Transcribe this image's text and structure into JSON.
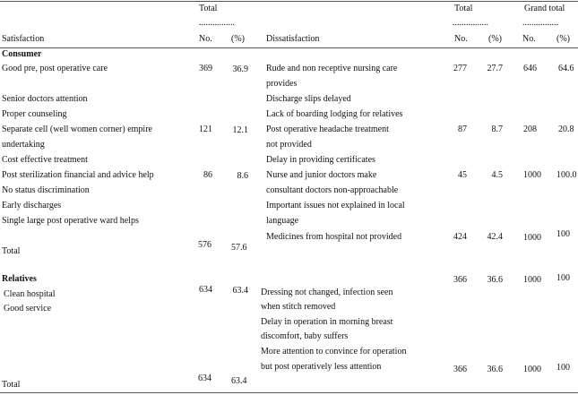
{
  "header": {
    "total_left": "Total",
    "total_right": "Total",
    "grand_total": "Grand total",
    "rule": "................",
    "col_satisfaction": "Satisfaction",
    "col_no": "No.",
    "col_pct": "(%)",
    "col_dissatisfaction": "Dissatisfaction"
  },
  "consumer": {
    "label": "Consumer",
    "satisfaction": [
      "Good pre, post operative care",
      "Senior doctors attention",
      "Proper counseling",
      "Separate cell (well women corner) empire",
      "undertaking",
      "Cost effective treatment",
      "Post sterilization financial and advice help",
      "No status discrimination",
      "Early discharges",
      "Single large post operative ward helps"
    ],
    "dissatisfaction": [
      "Rude and non receptive nursing care",
      "provides",
      "Discharge slips delayed",
      "Lack of boarding lodging for relatives",
      "Post operative headache treatment",
      "not provided",
      "Delay in providing certificates",
      "Nurse and junior doctors make",
      "consultant doctors non-approachable",
      "Important issues not explained in local",
      "language",
      "Medicines from hospital not provided"
    ],
    "satisfaction_figures": [
      [
        "369",
        "36.9"
      ],
      [
        "121",
        "12.1"
      ],
      [
        "86",
        "8.6"
      ]
    ],
    "dissatisfaction_figures": [
      [
        "277",
        "27.7"
      ],
      [
        "87",
        "8.7"
      ],
      [
        "45",
        "4.5"
      ],
      [
        "424",
        "42.4"
      ]
    ],
    "grand_total": [
      [
        "646",
        "64.6"
      ],
      [
        "208",
        "20.8"
      ],
      [
        "1000",
        "100.0"
      ],
      [
        "1000",
        "100"
      ]
    ],
    "total": {
      "label": "Total",
      "no": "576",
      "pct": "57.6"
    }
  },
  "relatives": {
    "label": "Relatives",
    "satisfaction": [
      "Clean hospital",
      "Good service"
    ],
    "dissatisfaction": [
      "Dressing not changed, infection seen",
      "when stitch removed",
      "Delay in operation in morning breast",
      "discomfort, baby suffers",
      "More attention to convince for operation",
      "but post operatively less attention"
    ],
    "satisfaction_figures": [
      [
        "634",
        "63.4"
      ]
    ],
    "dissatisfaction_figures": [
      [
        "366",
        "36.6"
      ],
      [
        "366",
        "36.6"
      ]
    ],
    "grand_total": [
      [
        "1000",
        "100"
      ],
      [
        "1000",
        "100"
      ]
    ],
    "total": {
      "label": "Total",
      "no": "634",
      "pct": "63.4"
    }
  }
}
